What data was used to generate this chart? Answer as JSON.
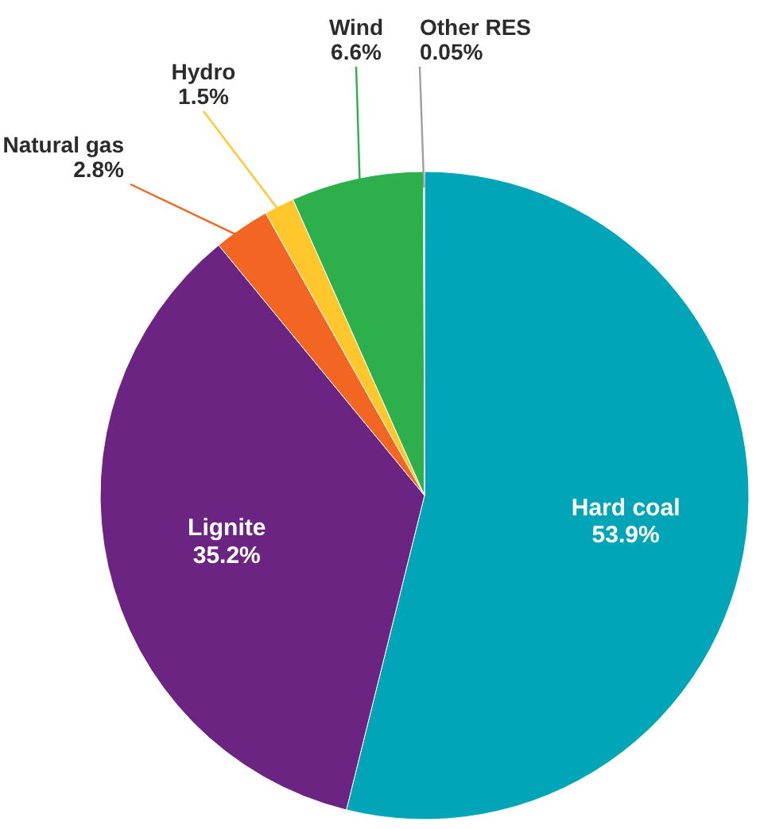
{
  "chart_data": {
    "type": "pie",
    "categories": [
      "Hard coal",
      "Lignite",
      "Natural gas",
      "Hydro",
      "Wind",
      "Other RES"
    ],
    "values": [
      53.9,
      35.2,
      2.8,
      1.5,
      6.6,
      0.05
    ],
    "colors": [
      "#00a6b8",
      "#6b2482",
      "#f26522",
      "#ffc72c",
      "#2db04b",
      "#a0a0a0"
    ],
    "value_labels": [
      "53.9%",
      "35.2%",
      "2.8%",
      "1.5%",
      "6.6%",
      "0.05%"
    ]
  }
}
